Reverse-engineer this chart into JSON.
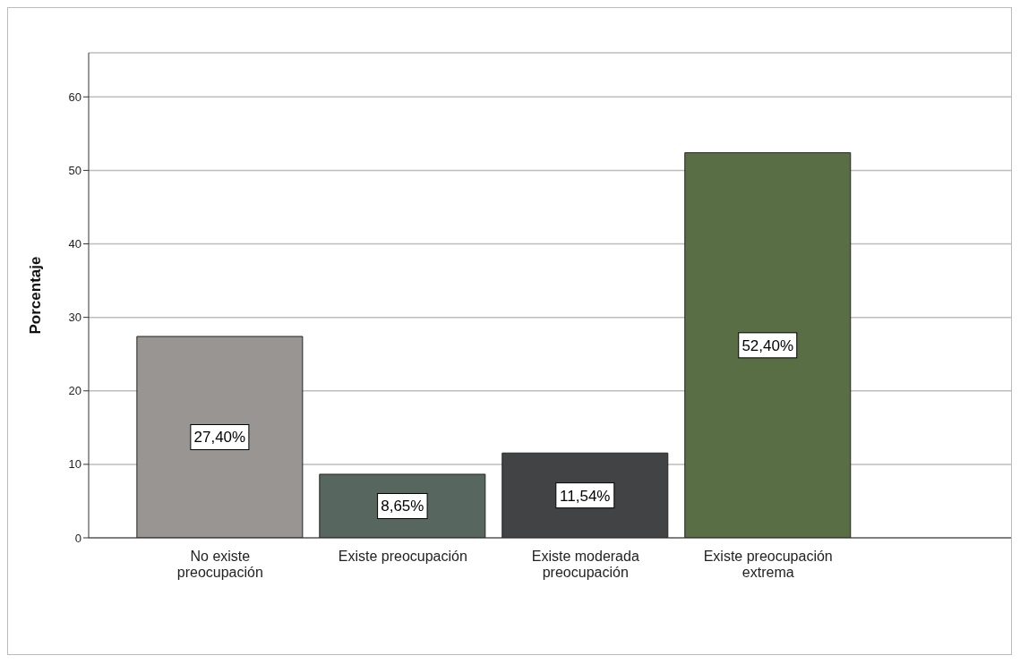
{
  "chart_data": {
    "type": "bar",
    "ylabel": "Porcentaje",
    "categories": [
      "No existe preocupación",
      "Existe preocupación",
      "Existe moderada preocupación",
      "Existe preocupación extrema"
    ],
    "values": [
      27.4,
      8.65,
      11.54,
      52.4
    ],
    "colors": [
      "#999593",
      "#57665e",
      "#424344",
      "#5a6e46"
    ],
    "value_labels": [
      "27,40%",
      "8,65%",
      "11,54%",
      "52,40%"
    ],
    "ylim": [
      0,
      66
    ],
    "yticks": [
      0,
      10,
      20,
      30,
      40,
      50,
      60
    ],
    "grid": "y"
  }
}
